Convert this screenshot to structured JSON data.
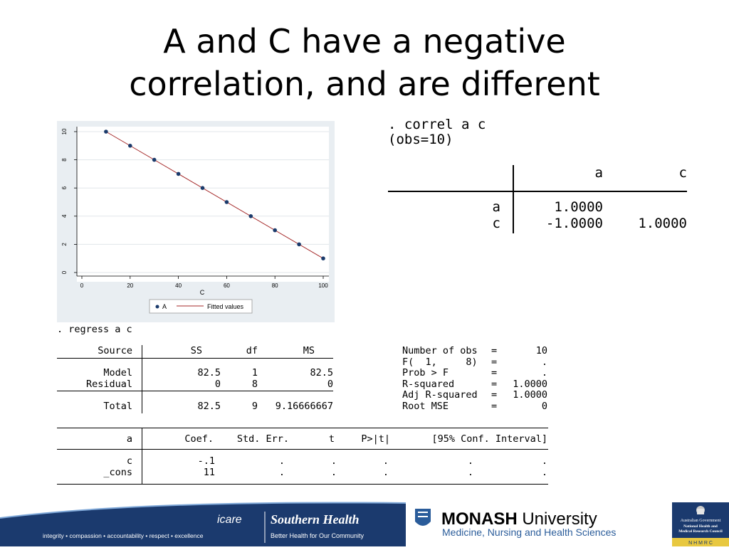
{
  "slide": {
    "title_line1": "A and C have a negative",
    "title_line2": "correlation, and are different"
  },
  "correl": {
    "command": ". correl a c",
    "obs": "(obs=10)",
    "headers": [
      "a",
      "c"
    ],
    "rows": [
      {
        "label": "a",
        "values": [
          "1.0000",
          ""
        ]
      },
      {
        "label": "c",
        "values": [
          "-1.0000",
          "1.0000"
        ]
      }
    ]
  },
  "chart_data": {
    "type": "scatter",
    "title": "",
    "xlabel": "C",
    "ylabel": "",
    "xlim": [
      0,
      100
    ],
    "ylim": [
      0,
      10
    ],
    "xticks": [
      "0",
      "20",
      "40",
      "60",
      "80",
      "100"
    ],
    "yticks": [
      "0",
      "2",
      "4",
      "6",
      "8",
      "10"
    ],
    "grid": true,
    "legend_position": "bottom",
    "series": [
      {
        "name": "A",
        "kind": "points",
        "color": "#1a3a6b",
        "x": [
          10,
          20,
          30,
          40,
          50,
          60,
          70,
          80,
          90,
          100
        ],
        "y": [
          10,
          9,
          8,
          7,
          6,
          5,
          4,
          3,
          2,
          1
        ]
      },
      {
        "name": "Fitted values",
        "kind": "line",
        "color": "#a52a2a",
        "x": [
          10,
          100
        ],
        "y": [
          10,
          1
        ]
      }
    ]
  },
  "regress": {
    "command": ". regress a c",
    "anova_headers": {
      "source": "Source",
      "ss": "SS",
      "df": "df",
      "ms": "MS"
    },
    "anova_rows": [
      {
        "source": "Model",
        "ss": "82.5",
        "df": "1",
        "ms": "82.5"
      },
      {
        "source": "Residual",
        "ss": "0",
        "df": "8",
        "ms": "0"
      },
      {
        "source": "Total",
        "ss": "82.5",
        "df": "9",
        "ms": "9.16666667"
      }
    ],
    "stats": [
      {
        "label": "Number of obs",
        "eq": "=",
        "value": "10"
      },
      {
        "label": "F(  1,     8)",
        "eq": "=",
        "value": "."
      },
      {
        "label": "Prob > F",
        "eq": "=",
        "value": "."
      },
      {
        "label": "R-squared",
        "eq": "=",
        "value": "1.0000"
      },
      {
        "label": "Adj R-squared",
        "eq": "=",
        "value": "1.0000"
      },
      {
        "label": "Root MSE",
        "eq": "=",
        "value": "0"
      }
    ],
    "coef_headers": {
      "var": "a",
      "coef": "Coef.",
      "se": "Std. Err.",
      "t": "t",
      "p": "P>|t|",
      "ci": "[95% Conf. Interval]"
    },
    "coef_rows": [
      {
        "var": "c",
        "coef": "-.1",
        "se": ".",
        "t": ".",
        "p": ".",
        "ci_low": ".",
        "ci_high": "."
      },
      {
        "var": "_cons",
        "coef": "11",
        "se": ".",
        "t": ".",
        "p": ".",
        "ci_low": ".",
        "ci_high": "."
      }
    ]
  },
  "footer": {
    "values_line": "integrity • compassion • accountability • respect • excellence",
    "icare": "icare",
    "southern_health": "Southern Health",
    "southern_tagline": "Better Health for Our Community",
    "monash_bold": "MONASH",
    "monash_light": " University",
    "monash_sub": "Medicine, Nursing and Health Sciences",
    "nhmrc_line1": "Australian Government",
    "nhmrc_line2": "National Health and",
    "nhmrc_line3": "Medical Research Council",
    "nhmrc_letters": "N  H  M  R  C",
    "navy": "#1b3a6e",
    "blue": "#2a5c9a"
  }
}
